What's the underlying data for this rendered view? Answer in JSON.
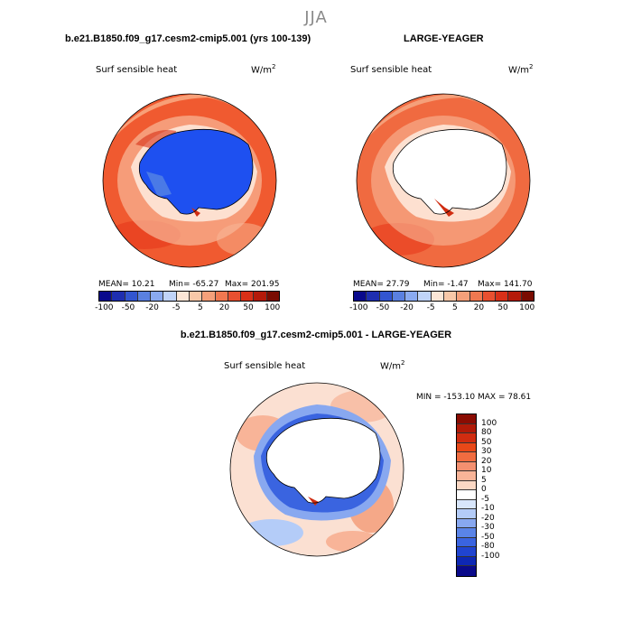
{
  "season": "JJA",
  "panel_left": {
    "title": "b.e21.B1850.f09_g17.cesm2-cmip5.001 (yrs 100-139)",
    "variable": "Surf sensible heat",
    "units": "W/m",
    "units_exp": "2",
    "mean": "MEAN=  10.21",
    "min": "Min=  -65.27",
    "max": "Max=  201.95"
  },
  "panel_right": {
    "title": "LARGE-YEAGER",
    "variable": "Surf sensible heat",
    "units": "W/m",
    "units_exp": "2",
    "mean": "MEAN=  27.79",
    "min": "Min=  -1.47",
    "max": "Max=  141.70"
  },
  "panel_diff": {
    "title": "b.e21.B1850.f09_g17.cesm2-cmip5.001 - LARGE-YEAGER",
    "variable": "Surf sensible heat",
    "units": "W/m",
    "units_exp": "2",
    "minmax": "MIN = -153.10 MAX =  78.61"
  },
  "colorbar_top": {
    "colors": [
      "#0a0a8c",
      "#1e2eb0",
      "#3255d0",
      "#5a80e0",
      "#8aaaf0",
      "#c0d4f8",
      "#fbe6d6",
      "#f8c8a8",
      "#f5a07a",
      "#f07850",
      "#e85030",
      "#d83018",
      "#b41a0a",
      "#7a0c02"
    ],
    "ticks": [
      "-100",
      "-50",
      "-20",
      "-5",
      "5",
      "20",
      "50",
      "100"
    ]
  },
  "colorbar_diff": {
    "colors": [
      "#8a0c02",
      "#b01a08",
      "#d02c10",
      "#e84818",
      "#f06c40",
      "#f49070",
      "#f8b498",
      "#fbd8c4",
      "#ffffff",
      "#d8e6fb",
      "#b4ccf8",
      "#88a8f0",
      "#5a84e8",
      "#3a64e0",
      "#2044d0",
      "#0e28b4",
      "#0a0a8a"
    ],
    "ticks": [
      "100",
      "80",
      "50",
      "30",
      "20",
      "10",
      "5",
      "0",
      "-5",
      "-10",
      "-20",
      "-30",
      "-50",
      "-80",
      "-100"
    ]
  }
}
